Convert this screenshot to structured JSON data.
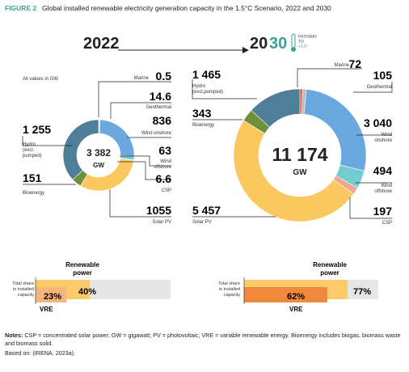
{
  "figure": {
    "label": "FIGURE 2",
    "title": "Global installed renewable electricity generation capacity in the 1.5°C Scenario, 2022 and 2030"
  },
  "header": {
    "year_2022": "2022",
    "year_2030_prefix": "20",
    "year_2030_suffix": "30",
    "pathway_line1": "PATHWAY",
    "pathway_line2": "TO",
    "pathway_line3": "+1.5°"
  },
  "note_units": "All values in GW",
  "colors": {
    "hydro": "#4f7f98",
    "bioenergy": "#6f8f3c",
    "solar_pv": "#fbc85f",
    "csp": "#f2a68c",
    "wind_offshore": "#72cdd2",
    "wind_onshore": "#6aa8df",
    "geothermal": "#bcbcbc",
    "marine": "#e0533b",
    "title_accent": "#3aa394",
    "re_bar": "#fdca6a",
    "vre_bar_2022": "#f7b47b",
    "vre_bar_2030": "#f0893a",
    "bar_bg": "#e6e6e6"
  },
  "chart_data": [
    {
      "type": "pie",
      "title": "2022",
      "total_label": "3 382",
      "unit_label": "GW",
      "slices": [
        {
          "name": "Marine",
          "value": 0.5,
          "label": "0.5"
        },
        {
          "name": "Geothermal",
          "value": 14.6,
          "label": "14.6"
        },
        {
          "name": "Wind onshore",
          "value": 836,
          "label": "836"
        },
        {
          "name": "Wind offshore",
          "value": 63,
          "label": "63"
        },
        {
          "name": "CSP",
          "value": 6.6,
          "label": "6.6"
        },
        {
          "name": "Solar PV",
          "value": 1055,
          "label": "1055"
        },
        {
          "name": "Bioenergy",
          "value": 151,
          "label": "151"
        },
        {
          "name": "Hydro (excl. pumped)",
          "value": 1255,
          "label": "1 255"
        }
      ]
    },
    {
      "type": "pie",
      "title": "2030",
      "total_label": "11 174",
      "unit_label": "GW",
      "slices": [
        {
          "name": "Marine",
          "value": 72,
          "label": "72"
        },
        {
          "name": "Geothermal",
          "value": 105,
          "label": "105"
        },
        {
          "name": "Wind onshore",
          "value": 3040,
          "label": "3 040"
        },
        {
          "name": "Wind offshore",
          "value": 494,
          "label": "494"
        },
        {
          "name": "CSP",
          "value": 197,
          "label": "197"
        },
        {
          "name": "Solar PV",
          "value": 5457,
          "label": "5 457"
        },
        {
          "name": "Bioenergy",
          "value": 343,
          "label": "343"
        },
        {
          "name": "Hydro (excl.pumped)",
          "value": 1465,
          "label": "1 465"
        }
      ]
    },
    {
      "type": "bar",
      "title": "Total share in installed capacity 2022",
      "series": [
        {
          "name": "Renewable power",
          "value": 40,
          "label": "40%"
        },
        {
          "name": "VRE",
          "value": 23,
          "label": "23%"
        }
      ],
      "ylim": [
        0,
        100
      ]
    },
    {
      "type": "bar",
      "title": "Total share in installed capacity 2030",
      "series": [
        {
          "name": "Renewable power",
          "value": 77,
          "label": "77%"
        },
        {
          "name": "VRE",
          "value": 62,
          "label": "62%"
        }
      ],
      "ylim": [
        0,
        100
      ]
    }
  ],
  "share_labels": {
    "renewable_line1": "Renewable",
    "renewable_line2": "power",
    "vre": "VRE",
    "total_line1": "Total share",
    "total_line2": "in installed",
    "total_line3": "capacity"
  },
  "labels_2022": {
    "hydro_line1": "Hydro",
    "hydro_line2": "(excl.",
    "hydro_line3": "pumped)",
    "bioenergy": "Bioenergy",
    "marine": "Marine",
    "geothermal": "Geothermal",
    "wind_onshore": "Wind onshore",
    "wind_offshore_line1": "Wind",
    "wind_offshore_line2": "offshore",
    "csp": "CSP",
    "solar_pv": "Solar PV"
  },
  "labels_2030": {
    "hydro_line1": "Hydro",
    "hydro_line2": "(excl.pumped)",
    "bioenergy": "Bioenergy",
    "marine": "Marine",
    "geothermal": "Geothermal",
    "wind_onshore_line1": "Wind",
    "wind_onshore_line2": "onshore",
    "wind_offshore_line1": "Wind",
    "wind_offshore_line2": "offshore",
    "csp": "CSP",
    "solar_pv": "Solar PV"
  },
  "notes": {
    "prefix": "Notes:",
    "text": "CSP = concentrated solar power; GW = gigawatt; PV = photovoltaic; VRE = variable renewable energy. Bioenergy includes biogas, biomass waste and biomass solid.",
    "source": "Based on: (IRENA, 2023a)."
  }
}
